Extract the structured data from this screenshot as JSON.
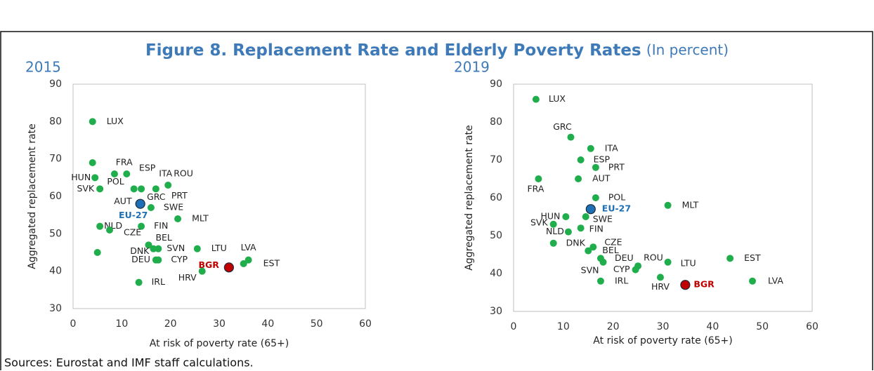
{
  "title": "Figure 8. Replacement Rate and Elderly Poverty Rates",
  "subtitle": "(In percent)",
  "source": "Sources: Eurostat and IMF staff calculations.",
  "chart_data": [
    {
      "type": "scatter",
      "title": "2015",
      "xlabel": "At risk of poverty rate (65+)",
      "ylabel": "Aggregated replacement rate",
      "xlim": [
        0,
        60
      ],
      "ylim": [
        30,
        90
      ],
      "xticks": [
        0,
        10,
        20,
        30,
        40,
        50,
        60
      ],
      "yticks": [
        30,
        40,
        50,
        60,
        70,
        80,
        90
      ],
      "color": "#1fae4b",
      "labels": [
        "LUX",
        "FRA",
        "ESP",
        "ITA",
        "ROU",
        "PRT",
        "GRC",
        "POL",
        "HUN",
        "SVK",
        "AUT",
        "EU-27",
        "SWE",
        "MLT",
        "FIN",
        "NLD",
        "CZE",
        "BEL",
        "DNK",
        "SVN",
        null,
        "DEU",
        "CYP",
        "LTU",
        "LVA",
        "EST",
        "BGR",
        "HRV",
        "IRL"
      ],
      "x": [
        4,
        4,
        8.5,
        11,
        19.5,
        17,
        14,
        12.5,
        4.5,
        5.5,
        13.5,
        13.8,
        16,
        21.5,
        14,
        5.5,
        7.5,
        15.5,
        16.5,
        17.5,
        5,
        17,
        17.5,
        25.5,
        36,
        35,
        32,
        26.5,
        13.5
      ],
      "y": [
        80,
        69,
        66,
        66,
        63,
        62,
        62,
        62,
        65,
        62,
        58,
        58,
        57,
        54,
        52,
        52,
        51,
        47,
        46,
        46,
        45,
        43,
        43,
        46,
        43,
        42,
        41,
        40,
        37
      ],
      "colors": [
        "#1fae4b",
        "#1fae4b",
        "#1fae4b",
        "#1fae4b",
        "#1fae4b",
        "#1fae4b",
        "#1fae4b",
        "#1fae4b",
        "#1fae4b",
        "#1fae4b",
        "#1fae4b",
        "#1f6fb5",
        "#1fae4b",
        "#1fae4b",
        "#1fae4b",
        "#1fae4b",
        "#1fae4b",
        "#1fae4b",
        "#1fae4b",
        "#1fae4b",
        "#1fae4b",
        "#1fae4b",
        "#1fae4b",
        "#1fae4b",
        "#1fae4b",
        "#1fae4b",
        "#c00000",
        "#1fae4b",
        "#1fae4b"
      ]
    },
    {
      "type": "scatter",
      "title": "2019",
      "xlabel": "At risk of poverty rate (65+)",
      "ylabel": "Aggregated replacement rate",
      "xlim": [
        0,
        60
      ],
      "ylim": [
        30,
        90
      ],
      "xticks": [
        0,
        10,
        20,
        30,
        40,
        50,
        60
      ],
      "yticks": [
        30,
        40,
        50,
        60,
        70,
        80,
        90
      ],
      "color": "#1fae4b",
      "labels": [
        "LUX",
        "GRC",
        "ITA",
        "ESP",
        "PRT",
        "AUT",
        "FRA",
        "POL",
        "EU-27",
        "MLT",
        "HUN",
        "SWE",
        "SVK",
        "FIN",
        "NLD",
        "DNK",
        "CZE",
        "BEL",
        "DEU",
        "SVN",
        "ROU",
        "CYP",
        "LTU",
        "EST",
        "LVA",
        "HRV",
        "BGR",
        "IRL"
      ],
      "x": [
        4.5,
        11.5,
        15.5,
        13.5,
        16.5,
        13,
        5,
        16.5,
        15.5,
        31,
        10.5,
        14.5,
        8,
        13.5,
        11,
        8,
        16,
        15,
        17.5,
        18,
        25,
        24.5,
        31,
        43.5,
        48,
        29.5,
        34.5,
        17.5
      ],
      "y": [
        86,
        76,
        73,
        70,
        68,
        65,
        65,
        60,
        57,
        58,
        55,
        55,
        53,
        52,
        51,
        48,
        47,
        46,
        44,
        43,
        42,
        41,
        43,
        44,
        38,
        39,
        37,
        38
      ],
      "colors": [
        "#1fae4b",
        "#1fae4b",
        "#1fae4b",
        "#1fae4b",
        "#1fae4b",
        "#1fae4b",
        "#1fae4b",
        "#1fae4b",
        "#1f6fb5",
        "#1fae4b",
        "#1fae4b",
        "#1fae4b",
        "#1fae4b",
        "#1fae4b",
        "#1fae4b",
        "#1fae4b",
        "#1fae4b",
        "#1fae4b",
        "#1fae4b",
        "#1fae4b",
        "#1fae4b",
        "#1fae4b",
        "#1fae4b",
        "#1fae4b",
        "#1fae4b",
        "#1fae4b",
        "#c00000",
        "#1fae4b"
      ]
    }
  ]
}
